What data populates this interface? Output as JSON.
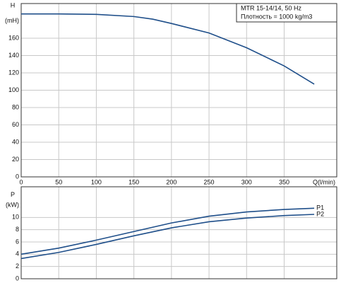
{
  "chart_data": [
    {
      "type": "line",
      "ylabel": "H",
      "yunit": "(mH)",
      "xlabel": "Q(l/min)",
      "notes": [
        "MTR 15-14/14, 50 Hz",
        "Плотность = 1000 kg/m3"
      ],
      "x": [
        0,
        50,
        100,
        150,
        175,
        200,
        250,
        300,
        350,
        390
      ],
      "series": [
        {
          "color": "#1f4f8a",
          "values": [
            188,
            188,
            187.5,
            185,
            182,
            177,
            166,
            149,
            128,
            107
          ]
        }
      ],
      "xlim": [
        0,
        420
      ],
      "xticks": [
        0,
        50,
        100,
        150,
        200,
        250,
        300,
        350
      ],
      "ylim": [
        0,
        200
      ],
      "yticks": [
        0,
        20,
        40,
        60,
        80,
        100,
        120,
        140,
        160
      ],
      "grid": true
    },
    {
      "type": "line",
      "ylabel": "P",
      "yunit": "(kW)",
      "x": [
        0,
        50,
        100,
        150,
        200,
        250,
        300,
        350,
        390
      ],
      "series": [
        {
          "name": "P1",
          "color": "#1f4f8a",
          "values": [
            4.0,
            5.0,
            6.3,
            7.7,
            9.1,
            10.2,
            10.9,
            11.3,
            11.5
          ]
        },
        {
          "name": "P2",
          "color": "#1f4f8a",
          "values": [
            3.3,
            4.3,
            5.6,
            7.0,
            8.3,
            9.3,
            9.9,
            10.3,
            10.5
          ]
        }
      ],
      "xlim": [
        0,
        420
      ],
      "xticks": [
        0,
        50,
        100,
        150,
        200,
        250,
        300,
        350
      ],
      "ylim": [
        0,
        15
      ],
      "yticks": [
        0,
        2,
        4,
        6,
        8,
        10
      ],
      "grid": true
    }
  ]
}
